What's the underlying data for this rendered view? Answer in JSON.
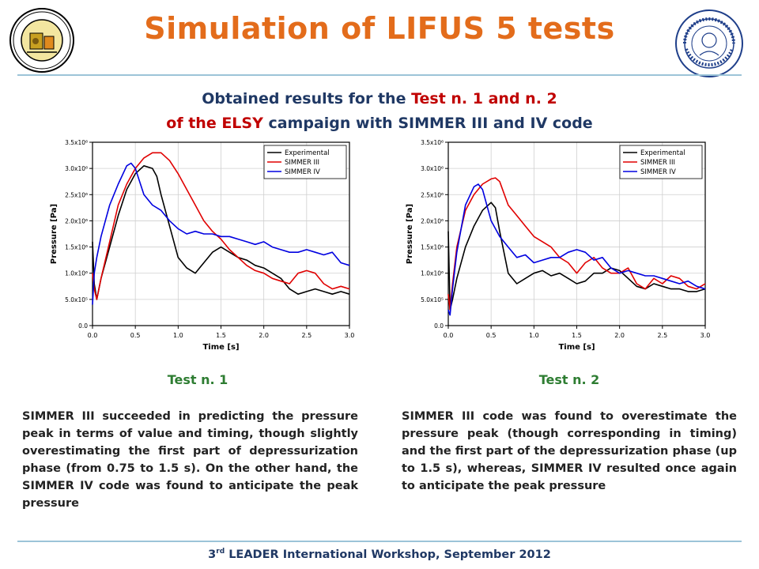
{
  "title": "Simulation of LIFUS 5 tests",
  "subtitle": {
    "line1_a": "Obtained results for the ",
    "line1_b": "Test n. 1 and n. 2",
    "line2_a": "of the ",
    "line2_b": "ELSY",
    "line2_c": " campaign with SIMMER III and IV code"
  },
  "colors": {
    "title": "#e36c1b",
    "accent": "#c00000",
    "navy": "#1f3864",
    "green": "#2e7d32"
  },
  "logos": {
    "left": "institution-seal-icon",
    "right": "university-seal-icon"
  },
  "chart_data": [
    {
      "type": "line",
      "xlabel": "Time [s]",
      "ylabel": "Pressure [Pa]",
      "xlim": [
        0,
        3
      ],
      "ylim": [
        0,
        3500000
      ],
      "xticks": [
        "0.0",
        "0.5",
        "1.0",
        "1.5",
        "2.0",
        "2.5",
        "3.0"
      ],
      "yticks": [
        "0.0",
        "5.0x10⁵",
        "1.0x10⁶",
        "1.5x10⁶",
        "2.0x10⁶",
        "2.5x10⁶",
        "3.0x10⁶",
        "3.5x10⁶"
      ],
      "legend_position": "top-right",
      "series": [
        {
          "name": "Experimental",
          "color": "#000000",
          "x": [
            0,
            0.02,
            0.05,
            0.1,
            0.2,
            0.3,
            0.4,
            0.5,
            0.6,
            0.7,
            0.75,
            0.8,
            0.9,
            1.0,
            1.1,
            1.2,
            1.3,
            1.4,
            1.5,
            1.6,
            1.7,
            1.8,
            1.9,
            2.0,
            2.1,
            2.2,
            2.3,
            2.4,
            2.5,
            2.6,
            2.7,
            2.8,
            2.9,
            3.0
          ],
          "y": [
            1600000,
            800000,
            500000,
            900000,
            1500000,
            2100000,
            2600000,
            2900000,
            3050000,
            3000000,
            2850000,
            2500000,
            1900000,
            1300000,
            1100000,
            1000000,
            1200000,
            1400000,
            1500000,
            1400000,
            1300000,
            1250000,
            1150000,
            1100000,
            1000000,
            900000,
            700000,
            600000,
            650000,
            700000,
            650000,
            600000,
            650000,
            600000
          ]
        },
        {
          "name": "SIMMER III",
          "color": "#e00000",
          "x": [
            0,
            0.02,
            0.05,
            0.1,
            0.2,
            0.3,
            0.4,
            0.5,
            0.6,
            0.7,
            0.8,
            0.9,
            1.0,
            1.1,
            1.2,
            1.3,
            1.4,
            1.5,
            1.6,
            1.7,
            1.8,
            1.9,
            2.0,
            2.1,
            2.2,
            2.3,
            2.4,
            2.5,
            2.6,
            2.7,
            2.8,
            2.9,
            3.0
          ],
          "y": [
            1000000,
            700000,
            500000,
            900000,
            1600000,
            2300000,
            2700000,
            3000000,
            3200000,
            3300000,
            3300000,
            3150000,
            2900000,
            2600000,
            2300000,
            2000000,
            1800000,
            1650000,
            1450000,
            1300000,
            1150000,
            1050000,
            1000000,
            900000,
            850000,
            800000,
            1000000,
            1050000,
            1000000,
            800000,
            700000,
            750000,
            700000
          ]
        },
        {
          "name": "SIMMER IV",
          "color": "#0000e0",
          "x": [
            0,
            0.02,
            0.05,
            0.1,
            0.2,
            0.3,
            0.4,
            0.45,
            0.5,
            0.6,
            0.7,
            0.8,
            0.9,
            1.0,
            1.1,
            1.2,
            1.3,
            1.4,
            1.5,
            1.6,
            1.7,
            1.8,
            1.9,
            2.0,
            2.1,
            2.2,
            2.3,
            2.4,
            2.5,
            2.6,
            2.7,
            2.8,
            2.9,
            3.0
          ],
          "y": [
            400000,
            1000000,
            1300000,
            1700000,
            2300000,
            2700000,
            3050000,
            3100000,
            3000000,
            2500000,
            2300000,
            2200000,
            2000000,
            1850000,
            1750000,
            1800000,
            1750000,
            1750000,
            1700000,
            1700000,
            1650000,
            1600000,
            1550000,
            1600000,
            1500000,
            1450000,
            1400000,
            1400000,
            1450000,
            1400000,
            1350000,
            1400000,
            1200000,
            1150000
          ]
        }
      ]
    },
    {
      "type": "line",
      "xlabel": "Time [s]",
      "ylabel": "Pressure [Pa]",
      "xlim": [
        0,
        3
      ],
      "ylim": [
        0,
        3500000
      ],
      "xticks": [
        "0.0",
        "0.5",
        "1.0",
        "1.5",
        "2.0",
        "2.5",
        "3.0"
      ],
      "yticks": [
        "0.0",
        "5.0x10⁵",
        "1.0x10⁶",
        "1.5x10⁶",
        "2.0x10⁶",
        "2.5x10⁶",
        "3.0x10⁶",
        "3.5x10⁶"
      ],
      "legend_position": "top-right",
      "series": [
        {
          "name": "Experimental",
          "color": "#000000",
          "x": [
            0,
            0.02,
            0.05,
            0.1,
            0.2,
            0.3,
            0.4,
            0.5,
            0.55,
            0.6,
            0.7,
            0.8,
            0.9,
            1.0,
            1.1,
            1.2,
            1.3,
            1.4,
            1.5,
            1.6,
            1.7,
            1.8,
            1.9,
            2.0,
            2.1,
            2.2,
            2.3,
            2.4,
            2.5,
            2.6,
            2.7,
            2.8,
            2.9,
            3.0
          ],
          "y": [
            1800000,
            300000,
            500000,
            900000,
            1500000,
            1900000,
            2200000,
            2350000,
            2250000,
            1800000,
            1000000,
            800000,
            900000,
            1000000,
            1050000,
            950000,
            1000000,
            900000,
            800000,
            850000,
            1000000,
            1000000,
            1100000,
            1050000,
            900000,
            750000,
            700000,
            800000,
            750000,
            700000,
            700000,
            650000,
            650000,
            700000
          ]
        },
        {
          "name": "SIMMER III",
          "color": "#e00000",
          "x": [
            0,
            0.02,
            0.05,
            0.1,
            0.2,
            0.3,
            0.4,
            0.5,
            0.55,
            0.6,
            0.7,
            0.8,
            0.9,
            1.0,
            1.1,
            1.2,
            1.3,
            1.4,
            1.5,
            1.6,
            1.7,
            1.8,
            1.9,
            2.0,
            2.1,
            2.2,
            2.3,
            2.4,
            2.5,
            2.6,
            2.7,
            2.8,
            2.9,
            3.0
          ],
          "y": [
            600000,
            300000,
            800000,
            1500000,
            2200000,
            2500000,
            2700000,
            2800000,
            2820000,
            2750000,
            2300000,
            2100000,
            1900000,
            1700000,
            1600000,
            1500000,
            1300000,
            1200000,
            1000000,
            1200000,
            1300000,
            1100000,
            1000000,
            1000000,
            1100000,
            800000,
            700000,
            900000,
            800000,
            950000,
            900000,
            750000,
            700000,
            800000
          ]
        },
        {
          "name": "SIMMER IV",
          "color": "#0000e0",
          "x": [
            0,
            0.02,
            0.05,
            0.1,
            0.2,
            0.3,
            0.35,
            0.4,
            0.5,
            0.6,
            0.7,
            0.8,
            0.9,
            1.0,
            1.1,
            1.2,
            1.3,
            1.4,
            1.5,
            1.6,
            1.7,
            1.8,
            1.9,
            2.0,
            2.1,
            2.2,
            2.3,
            2.4,
            2.5,
            2.6,
            2.7,
            2.8,
            2.9,
            3.0
          ],
          "y": [
            300000,
            200000,
            700000,
            1400000,
            2300000,
            2650000,
            2700000,
            2600000,
            2000000,
            1700000,
            1500000,
            1300000,
            1350000,
            1200000,
            1250000,
            1300000,
            1300000,
            1400000,
            1450000,
            1400000,
            1250000,
            1300000,
            1100000,
            1000000,
            1050000,
            1000000,
            950000,
            950000,
            900000,
            850000,
            800000,
            850000,
            750000,
            700000
          ]
        }
      ]
    }
  ],
  "labels": {
    "test1": "Test n. 1",
    "test2": "Test n. 2"
  },
  "paragraphs": {
    "left": "SIMMER III succeeded in predicting the pressure peak in terms of value and timing, though slightly overestimating the first part of depressurization phase (from 0.75 to 1.5 s). On the other hand, the SIMMER IV code was found to anticipate the peak pressure",
    "right": "SIMMER III code was found to overestimate the pressure peak (though corresponding in timing) and the first part of the depressurization phase (up to 1.5 s), whereas, SIMMER IV resulted once again to anticipate the peak pressure"
  },
  "footer": {
    "pre": "3",
    "sup": "rd",
    "post": " LEADER International Workshop, September 2012"
  }
}
